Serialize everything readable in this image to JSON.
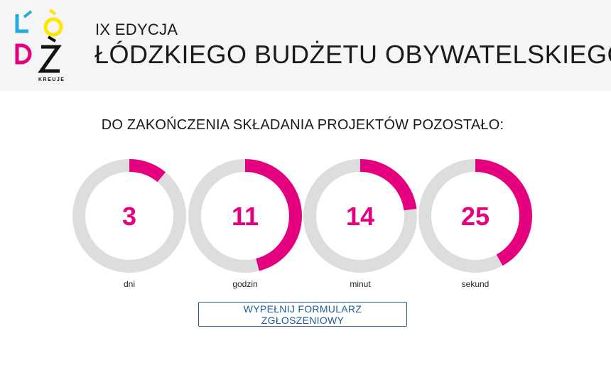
{
  "header": {
    "edition": "IX EDYCJA",
    "title": "ŁÓDZKIEGO BUDŻETU OBYWATELSKIEGO",
    "logo_tagline": "KREUJE",
    "logo_colors": [
      "#29a9e0",
      "#ffe600",
      "#e4007e",
      "#111111"
    ]
  },
  "countdown": {
    "title": "DO ZAKOŃCZENIA SKŁADANIA PROJEKTÓW POZOSTAŁO:",
    "accent_color": "#e4007e",
    "track_color": "#dddddd",
    "items": [
      {
        "value": "3",
        "unit": "dni",
        "fraction": 0.11
      },
      {
        "value": "11",
        "unit": "godzin",
        "fraction": 0.46
      },
      {
        "value": "14",
        "unit": "minut",
        "fraction": 0.23
      },
      {
        "value": "25",
        "unit": "sekund",
        "fraction": 0.42
      }
    ]
  },
  "cta": {
    "label": "WYPEŁNIJ FORMULARZ ZGŁOSZENIOWY"
  }
}
